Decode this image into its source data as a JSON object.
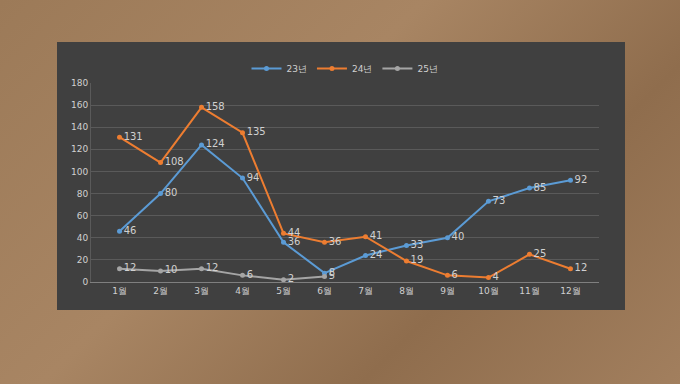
{
  "chart_data": {
    "type": "line",
    "categories": [
      "1월",
      "2월",
      "3월",
      "4월",
      "5월",
      "6월",
      "7월",
      "8월",
      "9월",
      "10월",
      "11월",
      "12월"
    ],
    "series": [
      {
        "name": "23년",
        "color": "#5b9bd5",
        "values": [
          46,
          80,
          124,
          94,
          36,
          8,
          24,
          33,
          40,
          73,
          85,
          92
        ]
      },
      {
        "name": "24년",
        "color": "#ed7d31",
        "values": [
          131,
          108,
          158,
          135,
          44,
          36,
          41,
          19,
          6,
          4,
          25,
          12
        ]
      },
      {
        "name": "25년",
        "color": "#a5a5a5",
        "values": [
          12,
          10,
          12,
          6,
          2,
          5,
          null,
          null,
          null,
          null,
          null,
          null
        ]
      }
    ],
    "ylim": [
      0,
      180
    ],
    "yticks": [
      0,
      20,
      40,
      60,
      80,
      100,
      120,
      140,
      160,
      180
    ],
    "grid": true,
    "legend": "top",
    "data_labels": true,
    "marker": "circle"
  }
}
